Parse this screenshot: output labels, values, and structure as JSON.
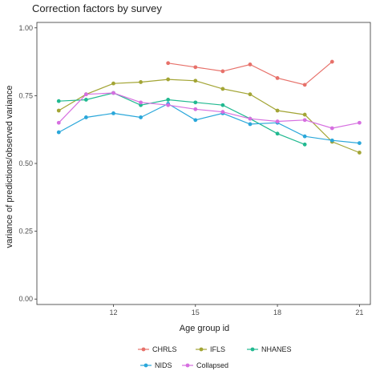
{
  "chart_data": {
    "type": "line",
    "title": "Correction factors by survey",
    "xlabel": "Age group id",
    "ylabel": "variance of predictions/observed variance",
    "xlim": [
      9.2,
      21.4
    ],
    "ylim": [
      -0.02,
      1.02
    ],
    "xticks": [
      12,
      15,
      18,
      21
    ],
    "yticks": [
      0.0,
      0.25,
      0.5,
      0.75,
      1.0
    ],
    "xtick_labels": [
      "12",
      "15",
      "18",
      "21"
    ],
    "ytick_labels": [
      "0.00",
      "0.25",
      "0.50",
      "0.75",
      "1.00"
    ],
    "grid": false,
    "legend_position": "bottom",
    "series": [
      {
        "name": "CHRLS",
        "color": "#E7716A",
        "x": [
          14,
          15,
          16,
          17,
          18,
          19,
          20
        ],
        "y": [
          0.87,
          0.855,
          0.84,
          0.865,
          0.815,
          0.79,
          0.875
        ]
      },
      {
        "name": "IFLS",
        "color": "#A3A535",
        "x": [
          10,
          11,
          12,
          13,
          14,
          15,
          16,
          17,
          18,
          19,
          20,
          21
        ],
        "y": [
          0.695,
          0.755,
          0.795,
          0.8,
          0.81,
          0.805,
          0.775,
          0.755,
          0.695,
          0.68,
          0.58,
          0.54
        ]
      },
      {
        "name": "NHANES",
        "color": "#21B990",
        "x": [
          10,
          11,
          12,
          13,
          14,
          15,
          16,
          17,
          18,
          19
        ],
        "y": [
          0.73,
          0.735,
          0.76,
          0.715,
          0.735,
          0.725,
          0.715,
          0.665,
          0.61,
          0.57
        ]
      },
      {
        "name": "NIDS",
        "color": "#2AA7DA",
        "x": [
          10,
          11,
          12,
          13,
          14,
          15,
          16,
          17,
          18,
          19,
          20,
          21
        ],
        "y": [
          0.615,
          0.67,
          0.685,
          0.67,
          0.72,
          0.66,
          0.685,
          0.645,
          0.65,
          0.6,
          0.585,
          0.575
        ]
      },
      {
        "name": "Collapsed",
        "color": "#D66FE0",
        "x": [
          10,
          11,
          12,
          13,
          14,
          15,
          16,
          17,
          18,
          19,
          20,
          21
        ],
        "y": [
          0.65,
          0.755,
          0.76,
          0.725,
          0.715,
          0.7,
          0.69,
          0.665,
          0.655,
          0.66,
          0.63,
          0.65
        ]
      }
    ]
  }
}
